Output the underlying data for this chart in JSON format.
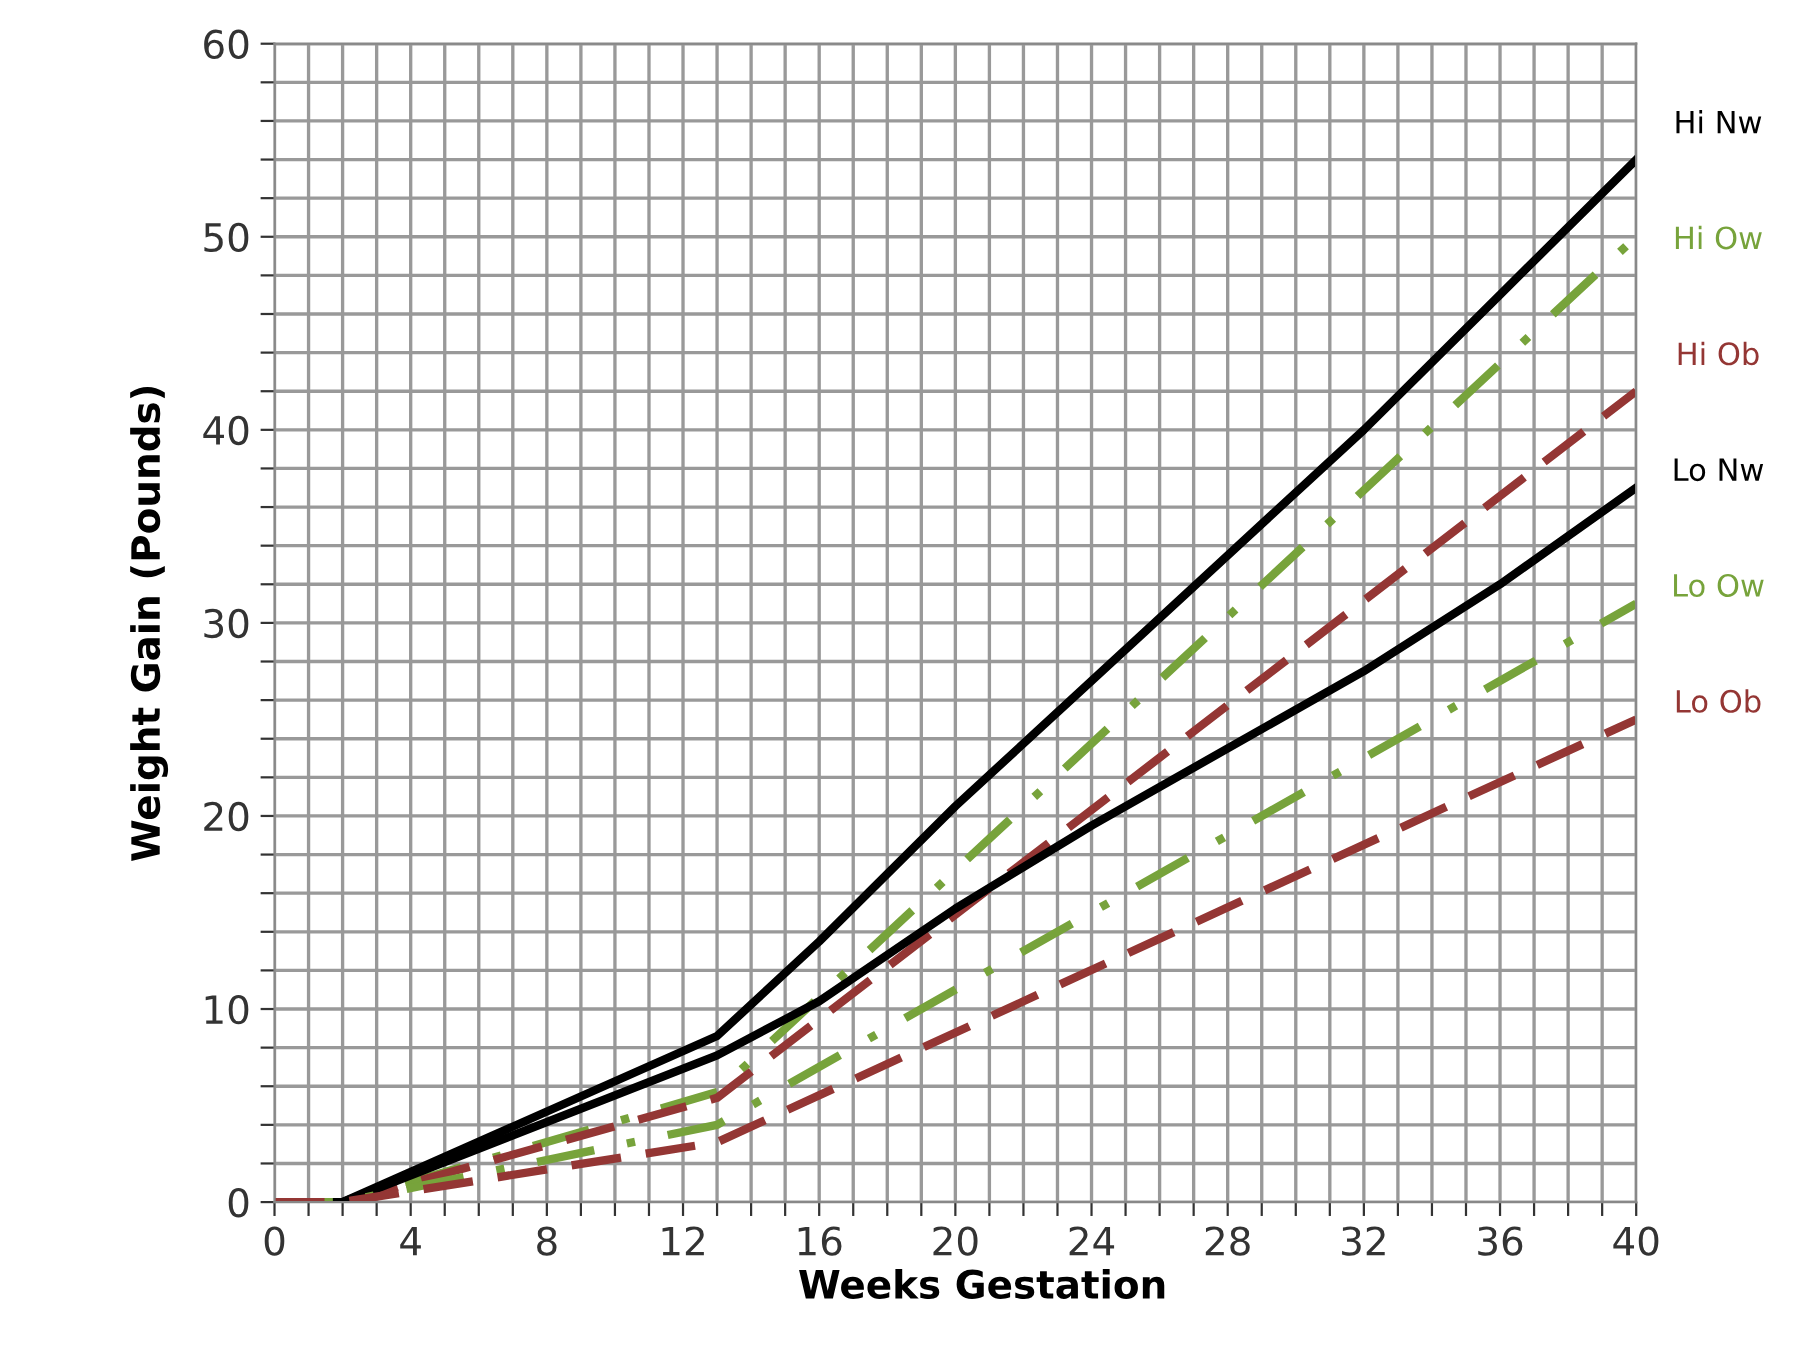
{
  "chart_data": {
    "type": "line",
    "xlabel": "Weeks Gestation",
    "ylabel": "Weight Gain (Pounds)",
    "xlim": [
      0,
      40
    ],
    "ylim": [
      0,
      60
    ],
    "xticks": [
      0,
      {
        "value": 1,
        "label": null
      },
      {
        "value": 2,
        "label": null
      },
      {
        "value": 3,
        "label": null
      },
      4,
      {
        "value": 5,
        "label": null
      },
      {
        "value": 6,
        "label": null
      },
      {
        "value": 7,
        "label": null
      },
      8,
      {
        "value": 9,
        "label": null
      },
      {
        "value": 10,
        "label": null
      },
      {
        "value": 11,
        "label": null
      },
      12,
      {
        "value": 13,
        "label": null
      },
      {
        "value": 14,
        "label": null
      },
      {
        "value": 15,
        "label": null
      },
      16,
      {
        "value": 17,
        "label": null
      },
      {
        "value": 18,
        "label": null
      },
      {
        "value": 19,
        "label": null
      },
      20,
      {
        "value": 21,
        "label": null
      },
      {
        "value": 22,
        "label": null
      },
      {
        "value": 23,
        "label": null
      },
      24,
      {
        "value": 25,
        "label": null
      },
      {
        "value": 26,
        "label": null
      },
      {
        "value": 27,
        "label": null
      },
      28,
      {
        "value": 29,
        "label": null
      },
      {
        "value": 30,
        "label": null
      },
      {
        "value": 31,
        "label": null
      },
      32,
      {
        "value": 33,
        "label": null
      },
      {
        "value": 34,
        "label": null
      },
      {
        "value": 35,
        "label": null
      },
      36,
      {
        "value": 37,
        "label": null
      },
      {
        "value": 38,
        "label": null
      },
      {
        "value": 39,
        "label": null
      },
      40
    ],
    "yticks": [
      0,
      {
        "value": 2,
        "label": null
      },
      {
        "value": 4,
        "label": null
      },
      {
        "value": 6,
        "label": null
      },
      {
        "value": 8,
        "label": null
      },
      10,
      {
        "value": 12,
        "label": null
      },
      {
        "value": 14,
        "label": null
      },
      {
        "value": 16,
        "label": null
      },
      {
        "value": 18,
        "label": null
      },
      20,
      {
        "value": 22,
        "label": null
      },
      {
        "value": 24,
        "label": null
      },
      {
        "value": 26,
        "label": null
      },
      {
        "value": 28,
        "label": null
      },
      30,
      {
        "value": 32,
        "label": null
      },
      {
        "value": 34,
        "label": null
      },
      {
        "value": 36,
        "label": null
      },
      {
        "value": 38,
        "label": null
      },
      40,
      {
        "value": 42,
        "label": null
      },
      {
        "value": 44,
        "label": null
      },
      {
        "value": 46,
        "label": null
      },
      {
        "value": 48,
        "label": null
      },
      50,
      {
        "value": 52,
        "label": null
      },
      {
        "value": 54,
        "label": null
      },
      {
        "value": 56,
        "label": null
      },
      {
        "value": 58,
        "label": null
      },
      60
    ],
    "grid": true,
    "legend": "right",
    "series": [
      {
        "name": "Hi Nw",
        "color": "#000000",
        "line_style": "solid",
        "x": [
          0,
          2,
          13,
          16,
          20,
          24,
          28,
          32,
          36,
          40
        ],
        "values": [
          0,
          0,
          8.6,
          13.5,
          20.5,
          27,
          33.5,
          40,
          47,
          54
        ]
      },
      {
        "name": "Hi Ow",
        "color": "#77a33b",
        "line_style": "dashdot",
        "x": [
          0,
          2,
          13,
          40
        ],
        "values": [
          0,
          0,
          5.7,
          50
        ]
      },
      {
        "name": "Hi Ob",
        "color": "#943634",
        "line_style": "dashed",
        "x": [
          0,
          2,
          13,
          40
        ],
        "values": [
          0,
          0,
          5.4,
          42
        ]
      },
      {
        "name": "Lo Nw",
        "color": "#000000",
        "line_style": "solid",
        "x": [
          0,
          2,
          13,
          16,
          20,
          24,
          28,
          32,
          36,
          40
        ],
        "values": [
          0,
          0,
          7.6,
          10.4,
          15.2,
          19.5,
          23.5,
          27.5,
          32,
          37
        ]
      },
      {
        "name": "Lo Ow",
        "color": "#77a33b",
        "line_style": "dashdot",
        "x": [
          0,
          2,
          13,
          40
        ],
        "values": [
          0,
          0,
          4.0,
          31
        ]
      },
      {
        "name": "Lo Ob",
        "color": "#943634",
        "line_style": "dashed",
        "x": [
          0,
          2,
          13,
          40
        ],
        "values": [
          0,
          0,
          3.1,
          25
        ]
      }
    ]
  }
}
